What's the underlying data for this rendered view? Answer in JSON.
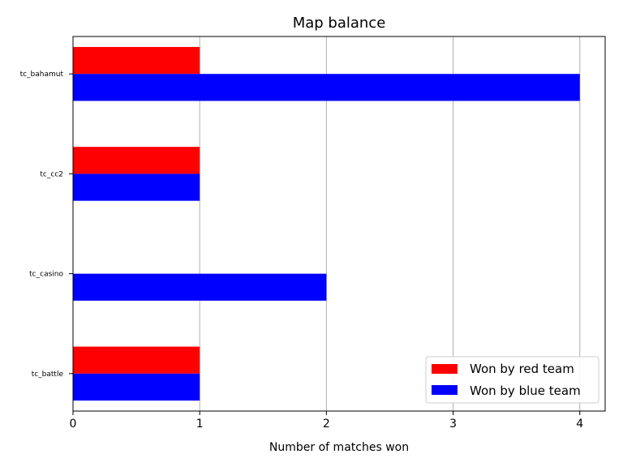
{
  "chart_data": {
    "type": "bar",
    "orientation": "horizontal",
    "title": "Map balance",
    "xlabel": "Number of matches won",
    "ylabel": "",
    "xlim": [
      0,
      4.2
    ],
    "xticks": [
      "0",
      "1",
      "2",
      "3",
      "4"
    ],
    "categories": [
      "tc_bahamut",
      "tc_cc2",
      "tc_casino",
      "tc_battle"
    ],
    "series": [
      {
        "name": "Won by red team",
        "color": "#ff0000",
        "values": [
          1,
          1,
          0,
          1
        ]
      },
      {
        "name": "Won by blue team",
        "color": "#0000ff",
        "values": [
          4,
          1,
          2,
          1
        ]
      }
    ],
    "grid": "vertical",
    "legend_position": "lower-right"
  }
}
